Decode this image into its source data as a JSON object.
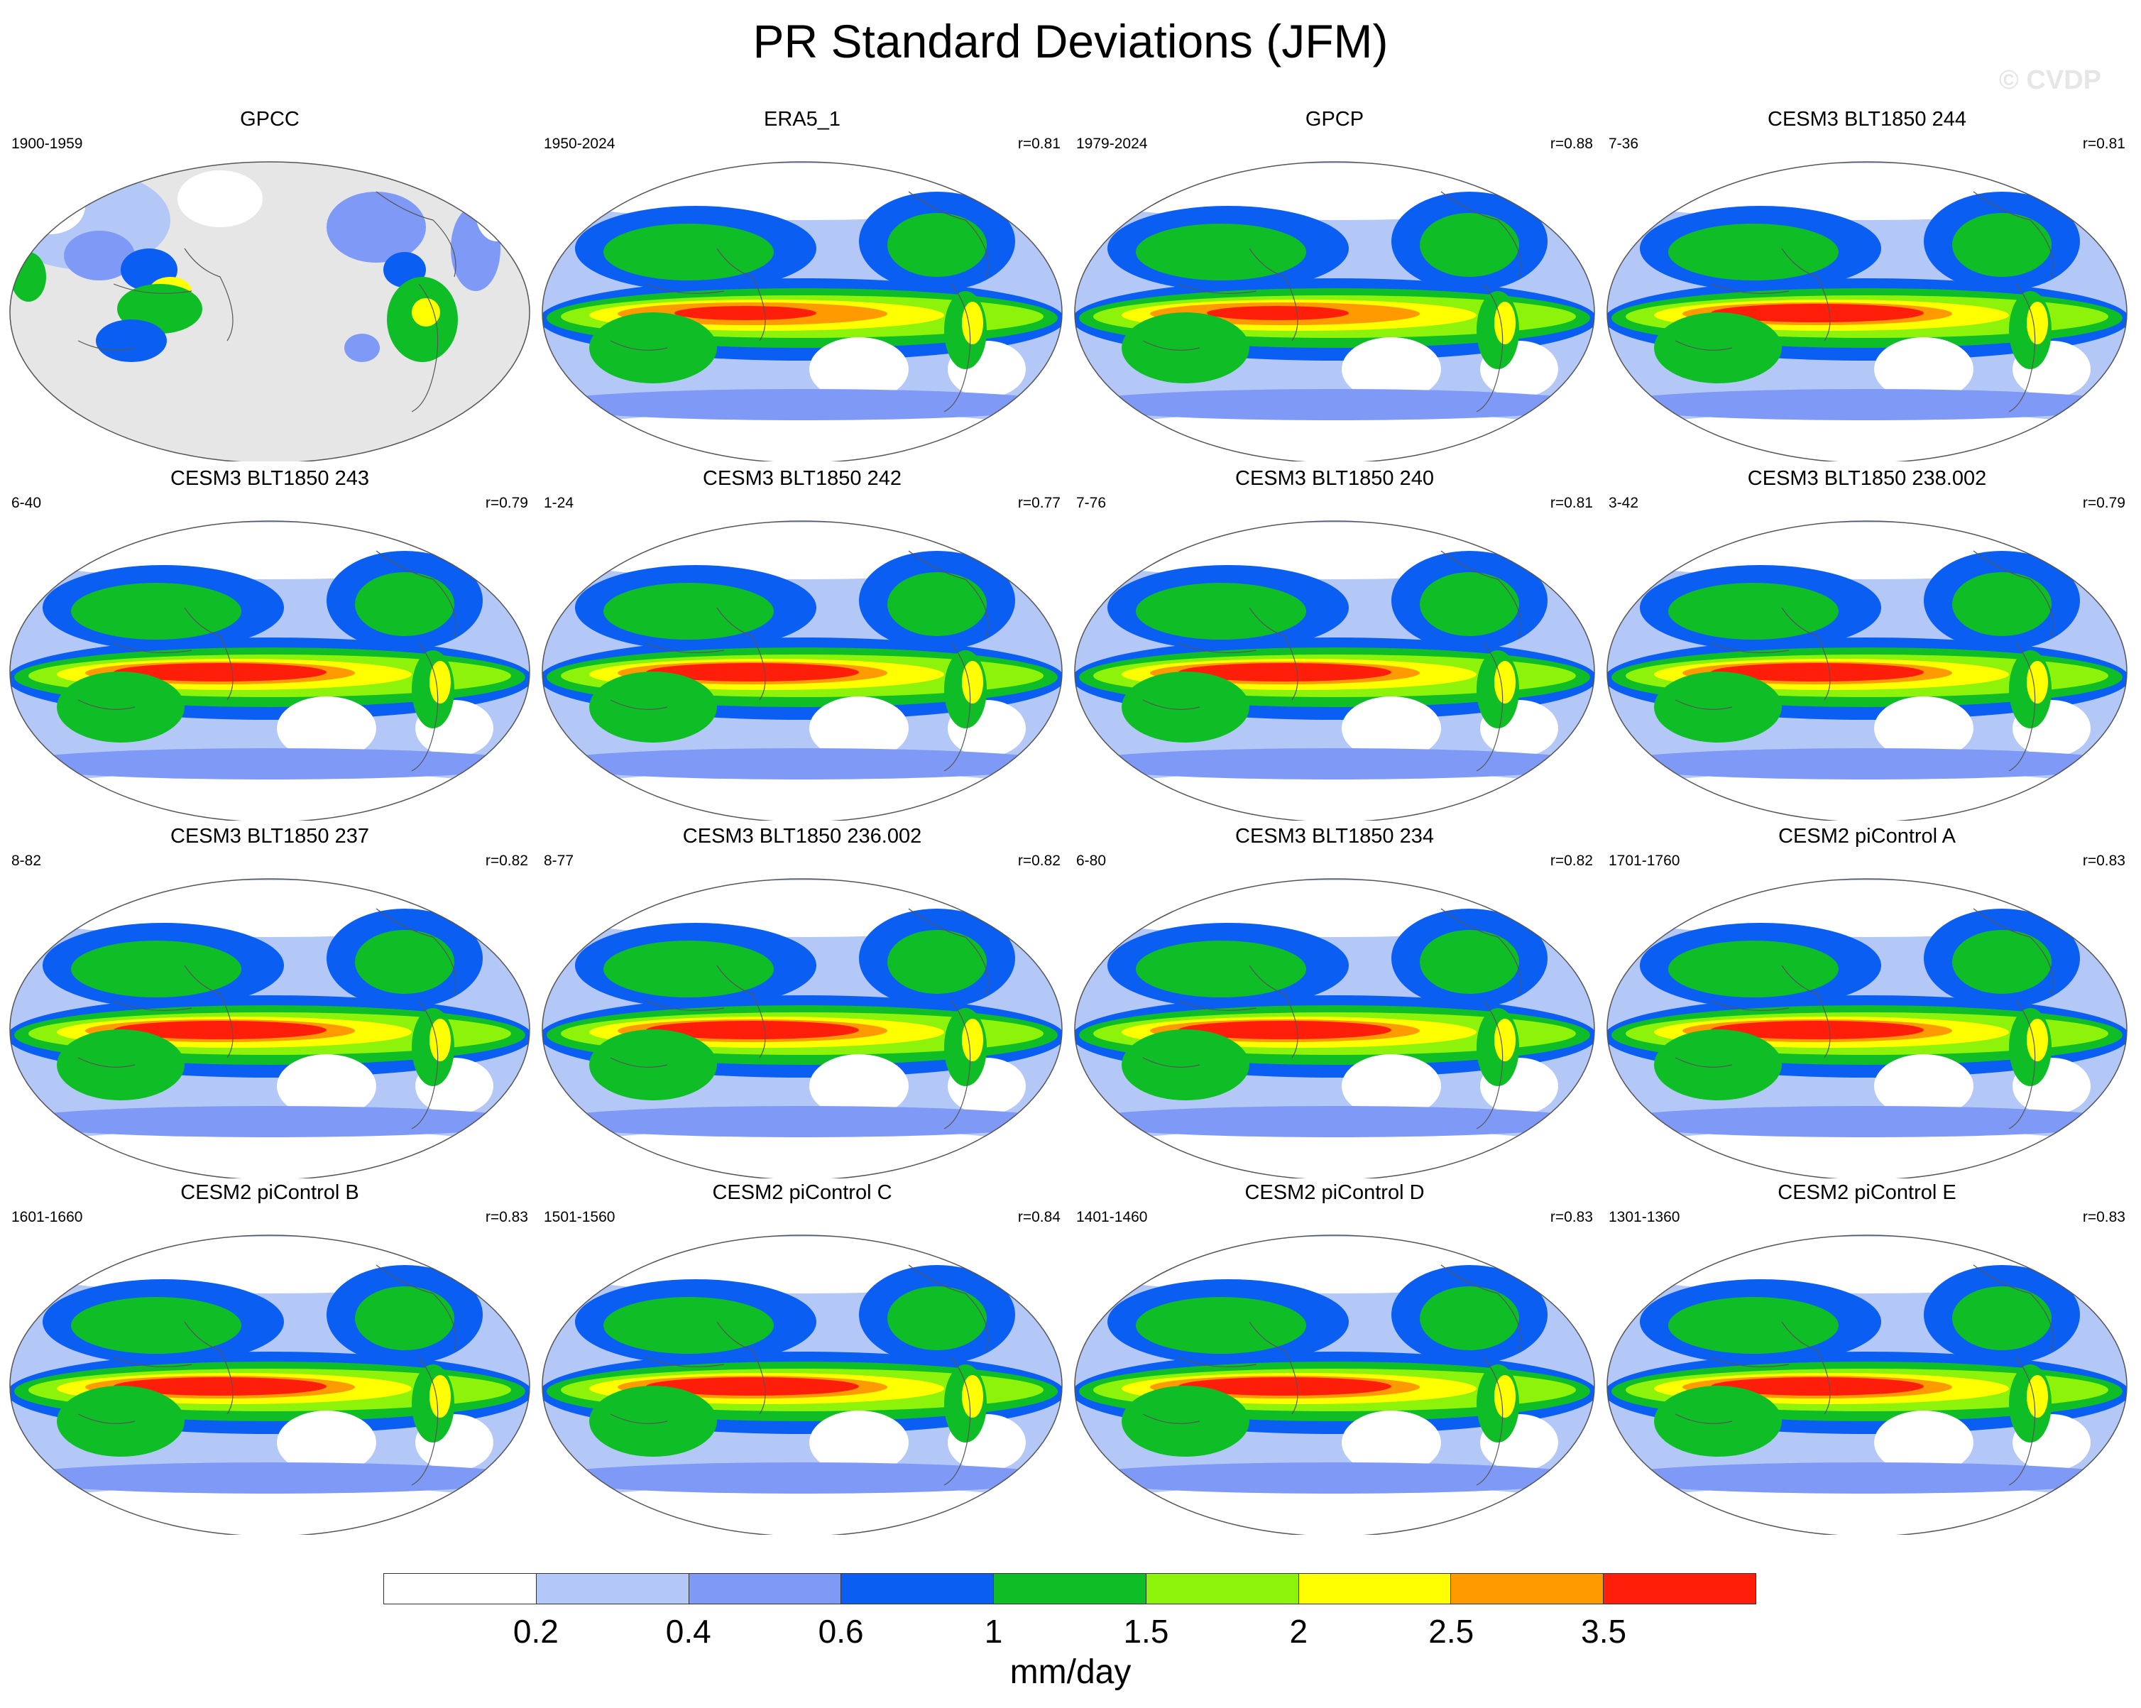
{
  "title": "PR Standard Deviations (JFM)",
  "watermark": "© CVDP",
  "panels": [
    {
      "title": "GPCC",
      "left": "1900-1959",
      "right": "",
      "style": "obs_land"
    },
    {
      "title": "ERA5_1",
      "left": "1950-2024",
      "right": "r=0.81",
      "style": "smooth"
    },
    {
      "title": "GPCP",
      "left": "1979-2024",
      "right": "r=0.88",
      "style": "smooth"
    },
    {
      "title": "CESM3 BLT1850 244",
      "left": "7-36",
      "right": "r=0.81",
      "style": "model"
    },
    {
      "title": "CESM3 BLT1850 243",
      "left": "6-40",
      "right": "r=0.79",
      "style": "model"
    },
    {
      "title": "CESM3 BLT1850 242",
      "left": "1-24",
      "right": "r=0.77",
      "style": "model"
    },
    {
      "title": "CESM3 BLT1850 240",
      "left": "7-76",
      "right": "r=0.81",
      "style": "model"
    },
    {
      "title": "CESM3 BLT1850 238.002",
      "left": "3-42",
      "right": "r=0.79",
      "style": "model"
    },
    {
      "title": "CESM3 BLT1850 237",
      "left": "8-82",
      "right": "r=0.82",
      "style": "model"
    },
    {
      "title": "CESM3 BLT1850 236.002",
      "left": "8-77",
      "right": "r=0.82",
      "style": "model"
    },
    {
      "title": "CESM3 BLT1850 234",
      "left": "6-80",
      "right": "r=0.82",
      "style": "model"
    },
    {
      "title": "CESM2 piControl A",
      "left": "1701-1760",
      "right": "r=0.83",
      "style": "model"
    },
    {
      "title": "CESM2 piControl B",
      "left": "1601-1660",
      "right": "r=0.83",
      "style": "model"
    },
    {
      "title": "CESM2 piControl C",
      "left": "1501-1560",
      "right": "r=0.84",
      "style": "model"
    },
    {
      "title": "CESM2 piControl D",
      "left": "1401-1460",
      "right": "r=0.83",
      "style": "model"
    },
    {
      "title": "CESM2 piControl E",
      "left": "1301-1360",
      "right": "r=0.83",
      "style": "model"
    }
  ],
  "colorbar": {
    "colors": [
      "#ffffff",
      "#b4c8f8",
      "#7f99f6",
      "#0a5ef2",
      "#0fbe26",
      "#8ef30a",
      "#ffff00",
      "#ff9b00",
      "#ff1e0a"
    ],
    "ticks": [
      "0.2",
      "0.4",
      "0.6",
      "1",
      "1.5",
      "2",
      "2.5",
      "3.5"
    ],
    "units": "mm/day"
  },
  "map_colors": {
    "ocean_missing": "#e6e6e6",
    "coast": "#555555"
  }
}
